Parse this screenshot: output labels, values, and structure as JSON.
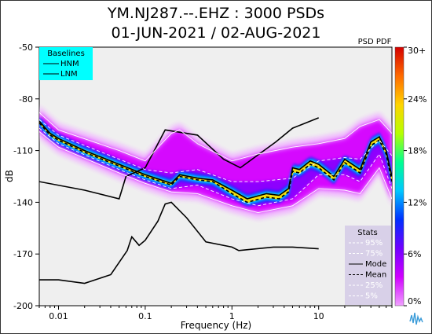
{
  "window": {
    "title_line1": "YM.NJ287.--.EHZ : 3000 PSDs",
    "title_line2": "01-JUN-2021 / 02-AUG-2021"
  },
  "chart_data": {
    "type": "heatmap",
    "title": "YM.NJ287.--.EHZ : 3000 PSDs",
    "subtitle": "01-JUN-2021 / 02-AUG-2021",
    "xlabel": "Frequency (Hz)",
    "ylabel": "dB",
    "x_scale": "log",
    "xlim": [
      0.006,
      70
    ],
    "ylim": [
      -200,
      -50
    ],
    "x_ticks": [
      {
        "value": 0.01,
        "label": "0.01"
      },
      {
        "value": 0.1,
        "label": "0.1"
      },
      {
        "value": 1,
        "label": "1"
      },
      {
        "value": 10,
        "label": "10"
      }
    ],
    "y_ticks": [
      {
        "value": -50,
        "label": "-50"
      },
      {
        "value": -80,
        "label": "-80"
      },
      {
        "value": -110,
        "label": "-110"
      },
      {
        "value": -140,
        "label": "-140"
      },
      {
        "value": -170,
        "label": "-170"
      },
      {
        "value": -200,
        "label": "-200"
      }
    ],
    "colorbar": {
      "label": "PSD PDF",
      "ticks": [
        "30+",
        "24%",
        "18%",
        "12%",
        "6%",
        "0%"
      ],
      "colors": [
        "#d40000",
        "#ff6a00",
        "#ffd400",
        "#b6ff00",
        "#00ff90",
        "#00c8ff",
        "#0030ff",
        "#7000ff",
        "#d000ff",
        "#f0a0ff"
      ]
    },
    "baselines_legend": {
      "title": "Baselines",
      "entries": [
        "HNM",
        "LNM"
      ],
      "background": "#00ffff"
    },
    "stats_legend": {
      "title": "Stats",
      "entries": [
        "95%",
        "75%",
        "Mode",
        "Mean",
        "25%",
        "5%"
      ],
      "background": "#d8d0e8"
    },
    "series": [
      {
        "name": "HNM",
        "color": "#000000",
        "x": [
          0.1,
          0.17,
          0.4,
          0.8,
          1.25,
          3.2,
          5.0,
          10.0
        ],
        "y": [
          -120,
          -98,
          -101,
          -115,
          -120,
          -105,
          -97,
          -91
        ]
      },
      {
        "name": "LNM",
        "color": "#000000",
        "x": [
          0.006,
          0.01,
          0.02,
          0.04,
          0.062,
          0.07,
          0.085,
          0.1,
          0.14,
          0.17,
          0.2,
          0.3,
          0.5,
          1.0,
          1.2,
          3.0,
          5.0,
          10.0
        ],
        "y": [
          -185,
          -185,
          -187,
          -182,
          -168,
          -160,
          -165,
          -162,
          -151,
          -141,
          -140,
          -149,
          -163,
          -166,
          -168,
          -166,
          -166,
          -167
        ]
      },
      {
        "name": "NLNM (long-period)",
        "color": "#000000",
        "x": [
          0.006,
          0.02,
          0.05,
          0.06,
          0.1
        ],
        "y": [
          -128,
          -133,
          -138,
          -125,
          -120
        ]
      },
      {
        "name": "Mode",
        "color": "#000000",
        "x": [
          0.006,
          0.008,
          0.01,
          0.02,
          0.05,
          0.1,
          0.2,
          0.25,
          0.4,
          0.6,
          1.0,
          1.5,
          2.5,
          3.5,
          4.5,
          5.0,
          6.0,
          8.0,
          10.0,
          15.0,
          20.0,
          30.0,
          40.0,
          50.0,
          60.0,
          70.0
        ],
        "y": [
          -93,
          -100,
          -103,
          -110,
          -118,
          -124,
          -129,
          -124,
          -126,
          -127,
          -133,
          -138,
          -135,
          -136,
          -132,
          -120,
          -121,
          -116,
          -118,
          -125,
          -115,
          -121,
          -105,
          -102,
          -110,
          -125
        ]
      },
      {
        "name": "Mean",
        "color": "#000000",
        "x": [
          0.006,
          0.008,
          0.01,
          0.02,
          0.05,
          0.1,
          0.2,
          0.25,
          0.4,
          0.6,
          1.0,
          1.5,
          2.5,
          3.5,
          4.5,
          5.0,
          6.0,
          8.0,
          10.0,
          15.0,
          20.0,
          30.0,
          40.0,
          50.0,
          60.0,
          70.0
        ],
        "y": [
          -94,
          -101,
          -104,
          -111,
          -119,
          -125,
          -130,
          -125,
          -127,
          -128,
          -135,
          -140,
          -137,
          -138,
          -134,
          -122,
          -123,
          -118,
          -120,
          -127,
          -117,
          -123,
          -107,
          -104,
          -112,
          -128
        ]
      },
      {
        "name": "95%",
        "color": "#ffffff",
        "x": [
          0.006,
          0.01,
          0.05,
          0.1,
          0.2,
          0.25,
          0.4,
          1.0,
          2.0,
          5.0,
          10.0,
          20.0,
          30.0,
          50.0,
          70.0
        ],
        "y": [
          -88,
          -98,
          -110,
          -116,
          -100,
          -98,
          -106,
          -116,
          -112,
          -108,
          -106,
          -103,
          -96,
          -92,
          -100
        ]
      },
      {
        "name": "75%",
        "color": "#ffffff",
        "x": [
          0.006,
          0.01,
          0.05,
          0.1,
          0.2,
          0.4,
          1.0,
          2.0,
          5.0,
          10.0,
          20.0,
          30.0,
          50.0,
          70.0
        ],
        "y": [
          -92,
          -101,
          -115,
          -121,
          -123,
          -121,
          -128,
          -128,
          -126,
          -116,
          -114,
          -115,
          -104,
          -113
        ]
      },
      {
        "name": "25%",
        "color": "#ffffff",
        "x": [
          0.006,
          0.01,
          0.05,
          0.1,
          0.2,
          0.4,
          1.0,
          2.0,
          5.0,
          10.0,
          20.0,
          30.0,
          50.0,
          70.0
        ],
        "y": [
          -97,
          -106,
          -121,
          -127,
          -132,
          -130,
          -138,
          -142,
          -138,
          -124,
          -124,
          -128,
          -112,
          -132
        ]
      },
      {
        "name": "5%",
        "color": "#ffffff",
        "x": [
          0.006,
          0.01,
          0.05,
          0.1,
          0.2,
          0.4,
          1.0,
          2.0,
          5.0,
          10.0,
          20.0,
          30.0,
          50.0,
          70.0
        ],
        "y": [
          -99,
          -108,
          -123,
          -129,
          -134,
          -135,
          -142,
          -146,
          -142,
          -132,
          -133,
          -135,
          -120,
          -138
        ]
      }
    ]
  }
}
